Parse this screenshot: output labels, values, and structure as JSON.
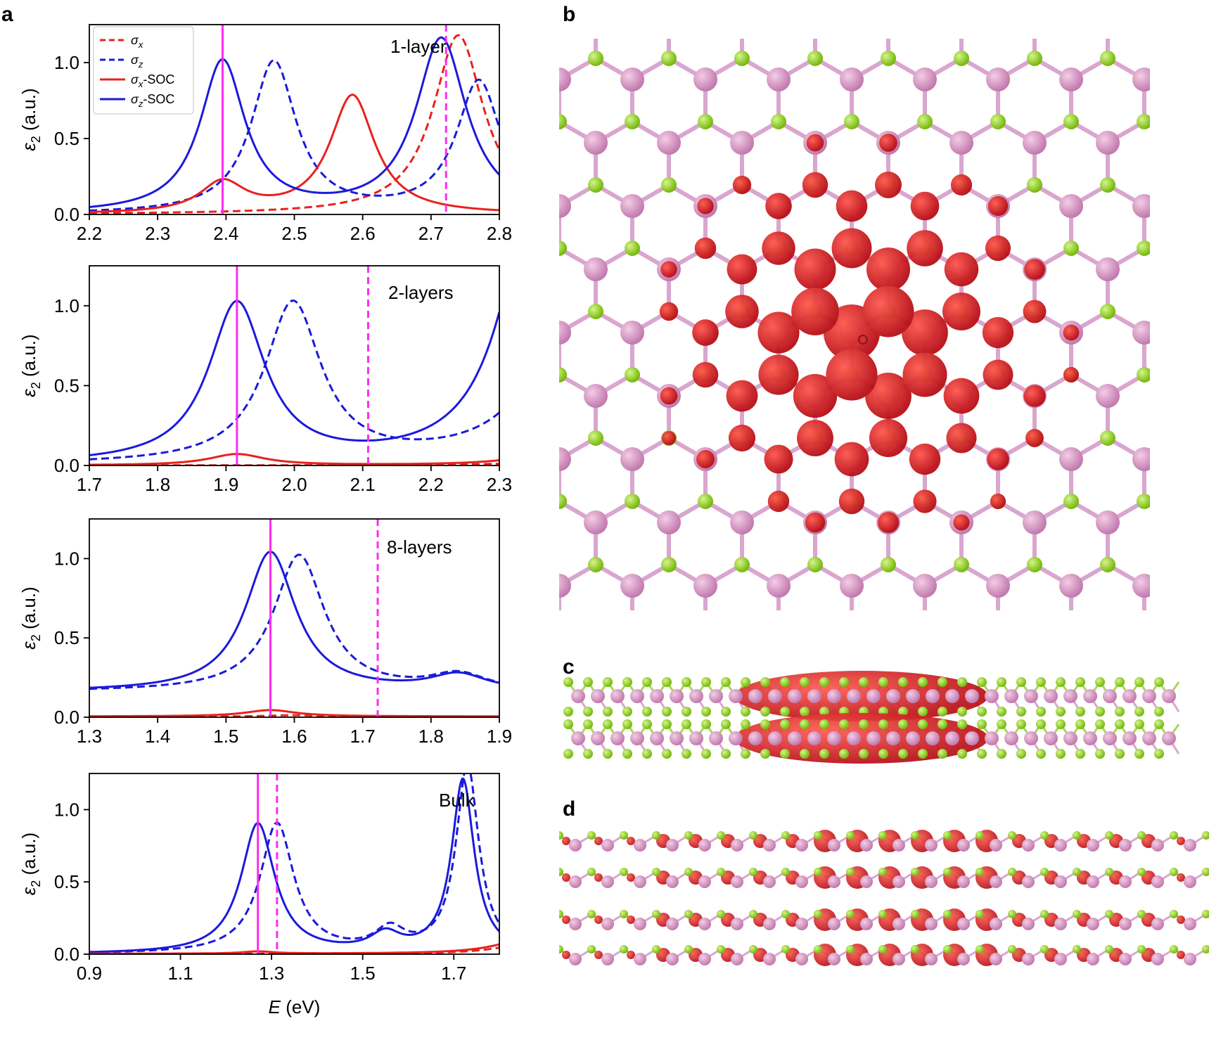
{
  "panel_letters": {
    "a": "a",
    "b": "b",
    "c": "c",
    "d": "d"
  },
  "colors": {
    "red": "#e8211c",
    "blue": "#1a1adc",
    "magenta": "#ff2bf1",
    "mo_atom": "#d58fc2",
    "s_atom": "#8fd416",
    "bond_mo": "#d9a6cf",
    "bond_s": "#a8d65a",
    "density": "#d8141d"
  },
  "chart_data": [
    {
      "type": "line",
      "label": "1-layer",
      "xlabel": "",
      "ylabel": "ε2 (a.u.)",
      "xlim": [
        2.2,
        2.8
      ],
      "ylim": [
        0,
        1.25
      ],
      "xticks": [
        "2.2",
        "2.3",
        "2.4",
        "2.5",
        "2.6",
        "2.7",
        "2.8"
      ],
      "yticks": [
        "0.0",
        "0.5",
        "1.0"
      ],
      "legend": {
        "placement": "top-left",
        "entries": [
          {
            "name": "σx",
            "style": "dashed",
            "color": "red"
          },
          {
            "name": "σz",
            "style": "dashed",
            "color": "blue"
          },
          {
            "name": "σx-SOC",
            "style": "solid",
            "color": "red"
          },
          {
            "name": "σz-SOC",
            "style": "solid",
            "color": "blue"
          }
        ]
      },
      "vlines": [
        {
          "x": 2.395,
          "style": "solid",
          "color": "magenta"
        },
        {
          "x": 2.722,
          "style": "dashed",
          "color": "magenta"
        }
      ],
      "series": [
        {
          "name": "σx",
          "style": "dashed",
          "color": "red",
          "peaks": [
            {
              "center": 2.74,
              "height": 1.18,
              "width": 0.045
            }
          ],
          "base": 0.0
        },
        {
          "name": "σz",
          "style": "dashed",
          "color": "blue",
          "peaks": [
            {
              "center": 2.47,
              "height": 1.0,
              "width": 0.04
            },
            {
              "center": 2.77,
              "height": 0.87,
              "width": 0.04
            }
          ],
          "base": 0.0
        },
        {
          "name": "σx-SOC",
          "style": "solid",
          "color": "red",
          "peaks": [
            {
              "center": 2.395,
              "height": 0.2,
              "width": 0.04
            },
            {
              "center": 2.585,
              "height": 0.78,
              "width": 0.04
            }
          ],
          "base": 0.0
        },
        {
          "name": "σz-SOC",
          "style": "solid",
          "color": "blue",
          "peaks": [
            {
              "center": 2.395,
              "height": 1.0,
              "width": 0.04
            },
            {
              "center": 2.715,
              "height": 1.15,
              "width": 0.045
            }
          ],
          "base": 0.0
        }
      ]
    },
    {
      "type": "line",
      "label": "2-layers",
      "xlabel": "",
      "ylabel": "ε2 (a.u.)",
      "xlim": [
        1.7,
        2.3
      ],
      "ylim": [
        0,
        1.25
      ],
      "xticks": [
        "1.7",
        "1.8",
        "1.9",
        "2.0",
        "2.1",
        "2.2",
        "2.3"
      ],
      "yticks": [
        "0.0",
        "0.5",
        "1.0"
      ],
      "vlines": [
        {
          "x": 1.916,
          "style": "solid",
          "color": "magenta"
        },
        {
          "x": 2.108,
          "style": "dashed",
          "color": "magenta"
        }
      ],
      "series": [
        {
          "name": "σz-SOC",
          "style": "solid",
          "color": "blue",
          "peaks": [
            {
              "center": 1.916,
              "height": 1.0,
              "width": 0.05
            },
            {
              "center": 2.35,
              "height": 1.6,
              "width": 0.06
            }
          ],
          "base": 0.0
        },
        {
          "name": "σz",
          "style": "dashed",
          "color": "blue",
          "peaks": [
            {
              "center": 1.998,
              "height": 1.0,
              "width": 0.05
            },
            {
              "center": 2.42,
              "height": 1.2,
              "width": 0.07
            }
          ],
          "base": 0.0
        },
        {
          "name": "σx-SOC",
          "style": "solid",
          "color": "red",
          "peaks": [
            {
              "center": 1.916,
              "height": 0.07,
              "width": 0.05
            },
            {
              "center": 2.4,
              "height": 0.12,
              "width": 0.06
            }
          ],
          "base": 0.0
        },
        {
          "name": "σx",
          "style": "dashed",
          "color": "red",
          "peaks": [
            {
              "center": 2.45,
              "height": 0.05,
              "width": 0.08
            }
          ],
          "base": 0.0
        }
      ]
    },
    {
      "type": "line",
      "label": "8-layers",
      "xlabel": "",
      "ylabel": "ε2 (a.u.)",
      "xlim": [
        1.3,
        1.9
      ],
      "ylim": [
        0,
        1.25
      ],
      "xticks": [
        "1.3",
        "1.4",
        "1.5",
        "1.6",
        "1.7",
        "1.8",
        "1.9"
      ],
      "yticks": [
        "0.0",
        "0.5",
        "1.0"
      ],
      "vlines": [
        {
          "x": 1.565,
          "style": "solid",
          "color": "magenta"
        },
        {
          "x": 1.722,
          "style": "dashed",
          "color": "magenta"
        }
      ],
      "series": [
        {
          "name": "σz-SOC",
          "style": "solid",
          "color": "blue",
          "peaks": [
            {
              "center": 1.565,
              "height": 0.88,
              "width": 0.045
            },
            {
              "center": 1.84,
              "height": 0.1,
              "width": 0.05
            }
          ],
          "base": 0.16
        },
        {
          "name": "σz",
          "style": "dashed",
          "color": "blue",
          "peaks": [
            {
              "center": 1.607,
              "height": 0.86,
              "width": 0.045
            },
            {
              "center": 1.84,
              "height": 0.1,
              "width": 0.05
            }
          ],
          "base": 0.16
        },
        {
          "name": "σx-SOC",
          "style": "solid",
          "color": "red",
          "peaks": [
            {
              "center": 1.565,
              "height": 0.04,
              "width": 0.045
            }
          ],
          "base": 0.005
        },
        {
          "name": "σx",
          "style": "dashed",
          "color": "red",
          "peaks": [
            {
              "center": 1.6,
              "height": 0.01,
              "width": 0.05
            }
          ],
          "base": 0.003
        }
      ]
    },
    {
      "type": "line",
      "label": "Bulk",
      "xlabel": "E (eV)",
      "ylabel": "ε2 (a.u.)",
      "xlim": [
        0.9,
        1.8
      ],
      "ylim": [
        0,
        1.25
      ],
      "xticks": [
        "0.9",
        "1.1",
        "1.3",
        "1.5",
        "1.7"
      ],
      "yticks": [
        "0.0",
        "0.5",
        "1.0"
      ],
      "vlines": [
        {
          "x": 1.27,
          "style": "solid",
          "color": "magenta"
        },
        {
          "x": 1.312,
          "style": "dashed",
          "color": "magenta"
        }
      ],
      "series": [
        {
          "name": "σz-SOC",
          "style": "solid",
          "color": "blue",
          "peaks": [
            {
              "center": 1.27,
              "height": 0.9,
              "width": 0.045
            },
            {
              "center": 1.55,
              "height": 0.12,
              "width": 0.04
            },
            {
              "center": 1.72,
              "height": 1.2,
              "width": 0.03
            }
          ],
          "base": 0.0
        },
        {
          "name": "σz",
          "style": "dashed",
          "color": "blue",
          "peaks": [
            {
              "center": 1.312,
              "height": 0.9,
              "width": 0.045
            },
            {
              "center": 1.56,
              "height": 0.15,
              "width": 0.04
            },
            {
              "center": 1.73,
              "height": 1.3,
              "width": 0.03
            }
          ],
          "base": 0.0
        },
        {
          "name": "σx-SOC",
          "style": "solid",
          "color": "red",
          "peaks": [
            {
              "center": 1.27,
              "height": 0.015,
              "width": 0.04
            },
            {
              "center": 1.85,
              "height": 0.09,
              "width": 0.08
            }
          ],
          "base": 0.003
        },
        {
          "name": "σx",
          "style": "dashed",
          "color": "red",
          "peaks": [
            {
              "center": 1.85,
              "height": 0.06,
              "width": 0.08
            }
          ],
          "base": 0.002
        }
      ]
    }
  ]
}
